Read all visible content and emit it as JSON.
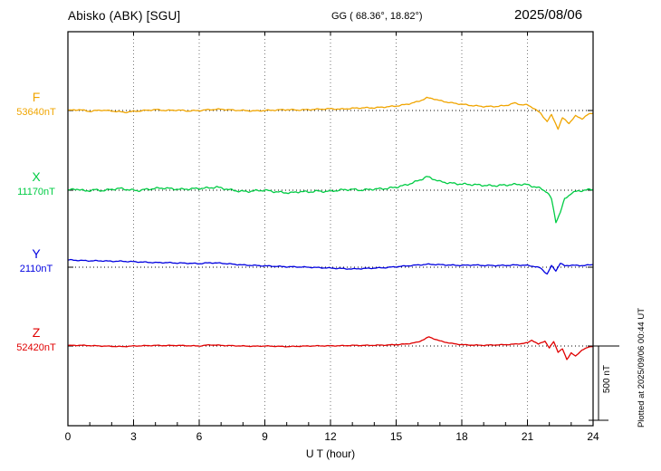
{
  "header": {
    "station": "Abisko (ABK)  [SGU]",
    "coords": "GG ( 68.36°,  18.82°)",
    "date": "2025/08/06"
  },
  "axis": {
    "xlabel": "U T (hour)",
    "tick_labels": [
      "0",
      "3",
      "6",
      "9",
      "12",
      "15",
      "18",
      "21",
      "24"
    ]
  },
  "trace_labels": [
    {
      "letter": "F",
      "value": "53640nT"
    },
    {
      "letter": "X",
      "value": "11170nT"
    },
    {
      "letter": "Y",
      "value": "2110nT"
    },
    {
      "letter": "Z",
      "value": "52420nT"
    }
  ],
  "scale_bar": {
    "label": "500 nT"
  },
  "plotted_note": "Plotted at 2025/09/06 00:44 UT",
  "colors": {
    "grid": "#777777",
    "axis": "#000000"
  },
  "chart_data": {
    "type": "line",
    "title": "Abisko (ABK) [SGU] magnetogram",
    "date": "2025/08/06",
    "xlabel": "U T (hour)",
    "xlim": [
      0,
      24
    ],
    "x_ticks": [
      0,
      3,
      6,
      9,
      12,
      15,
      18,
      21,
      24
    ],
    "scale_bar_nT": 500,
    "series": [
      {
        "name": "F",
        "baseline_nT": 53640,
        "color": "#f0a500",
        "wiggle_nT": 5,
        "points": [
          [
            0,
            0
          ],
          [
            0.5,
            6
          ],
          [
            1,
            -6
          ],
          [
            1.5,
            3
          ],
          [
            2,
            -3
          ],
          [
            2.6,
            -12
          ],
          [
            3,
            -6
          ],
          [
            3.5,
            0
          ],
          [
            4,
            6
          ],
          [
            4.5,
            0
          ],
          [
            5,
            3
          ],
          [
            5.5,
            -3
          ],
          [
            6,
            0
          ],
          [
            6.5,
            6
          ],
          [
            7,
            9
          ],
          [
            7.5,
            3
          ],
          [
            8,
            0
          ],
          [
            8.5,
            -3
          ],
          [
            9,
            0
          ],
          [
            9.5,
            3
          ],
          [
            10,
            6
          ],
          [
            10.5,
            3
          ],
          [
            11,
            6
          ],
          [
            11.5,
            9
          ],
          [
            12,
            12
          ],
          [
            12.5,
            9
          ],
          [
            13,
            15
          ],
          [
            13.5,
            18
          ],
          [
            14,
            18
          ],
          [
            14.5,
            24
          ],
          [
            15,
            30
          ],
          [
            15.5,
            42
          ],
          [
            16,
            60
          ],
          [
            16.4,
            85
          ],
          [
            16.7,
            80
          ],
          [
            17,
            66
          ],
          [
            17.5,
            52
          ],
          [
            18,
            42
          ],
          [
            18.5,
            33
          ],
          [
            19,
            27
          ],
          [
            19.5,
            27
          ],
          [
            20,
            33
          ],
          [
            20.4,
            50
          ],
          [
            20.7,
            40
          ],
          [
            21,
            37
          ],
          [
            21.3,
            15
          ],
          [
            21.6,
            -20
          ],
          [
            21.9,
            -73
          ],
          [
            22.1,
            -30
          ],
          [
            22.4,
            -122
          ],
          [
            22.6,
            -50
          ],
          [
            22.9,
            -85
          ],
          [
            23.2,
            -37
          ],
          [
            23.5,
            -55
          ],
          [
            23.8,
            -25
          ],
          [
            24,
            -18
          ]
        ]
      },
      {
        "name": "X",
        "baseline_nT": 11170,
        "color": "#00cc44",
        "wiggle_nT": 8,
        "points": [
          [
            0,
            0
          ],
          [
            0.4,
            9
          ],
          [
            0.8,
            -6
          ],
          [
            1.2,
            3
          ],
          [
            1.6,
            -3
          ],
          [
            2,
            6
          ],
          [
            2.4,
            12
          ],
          [
            2.8,
            3
          ],
          [
            3.2,
            -3
          ],
          [
            3.6,
            6
          ],
          [
            4,
            12
          ],
          [
            4.4,
            15
          ],
          [
            4.8,
            9
          ],
          [
            5.2,
            6
          ],
          [
            5.6,
            9
          ],
          [
            6,
            12
          ],
          [
            6.4,
            15
          ],
          [
            6.8,
            21
          ],
          [
            7.1,
            12
          ],
          [
            7.4,
            3
          ],
          [
            7.8,
            -6
          ],
          [
            8.2,
            -9
          ],
          [
            8.6,
            -3
          ],
          [
            9,
            0
          ],
          [
            9.4,
            -9
          ],
          [
            9.8,
            -15
          ],
          [
            10.2,
            -18
          ],
          [
            10.6,
            -9
          ],
          [
            11,
            -12
          ],
          [
            11.4,
            -6
          ],
          [
            11.8,
            -9
          ],
          [
            12.2,
            -3
          ],
          [
            12.6,
            3
          ],
          [
            13,
            6
          ],
          [
            13.4,
            0
          ],
          [
            13.8,
            6
          ],
          [
            14.2,
            9
          ],
          [
            14.6,
            12
          ],
          [
            15,
            21
          ],
          [
            15.4,
            33
          ],
          [
            15.8,
            52
          ],
          [
            16.1,
            70
          ],
          [
            16.4,
            91
          ],
          [
            16.7,
            76
          ],
          [
            17,
            58
          ],
          [
            17.4,
            49
          ],
          [
            17.8,
            43
          ],
          [
            18.2,
            40
          ],
          [
            18.6,
            37
          ],
          [
            19,
            33
          ],
          [
            19.4,
            30
          ],
          [
            19.8,
            33
          ],
          [
            20.2,
            37
          ],
          [
            20.6,
            40
          ],
          [
            21,
            37
          ],
          [
            21.3,
            24
          ],
          [
            21.6,
            12
          ],
          [
            21.9,
            -12
          ],
          [
            22.1,
            -60
          ],
          [
            22.3,
            -213
          ],
          [
            22.5,
            -150
          ],
          [
            22.7,
            -60
          ],
          [
            23,
            -20
          ],
          [
            23.3,
            -6
          ],
          [
            23.6,
            0
          ],
          [
            24,
            6
          ]
        ]
      },
      {
        "name": "Y",
        "baseline_nT": 2110,
        "color": "#0000e0",
        "wiggle_nT": 4,
        "points": [
          [
            0,
            49
          ],
          [
            0.5,
            46
          ],
          [
            1,
            43
          ],
          [
            1.5,
            43
          ],
          [
            2,
            40
          ],
          [
            2.5,
            40
          ],
          [
            3,
            37
          ],
          [
            3.5,
            34
          ],
          [
            4,
            31
          ],
          [
            4.5,
            31
          ],
          [
            5,
            28
          ],
          [
            5.5,
            27
          ],
          [
            6,
            24
          ],
          [
            6.5,
            30
          ],
          [
            7,
            27
          ],
          [
            7.5,
            21
          ],
          [
            8,
            15
          ],
          [
            8.5,
            12
          ],
          [
            9,
            9
          ],
          [
            9.5,
            6
          ],
          [
            10,
            3
          ],
          [
            10.5,
            2
          ],
          [
            11,
            0
          ],
          [
            11.5,
            -3
          ],
          [
            12,
            -6
          ],
          [
            12.5,
            -9
          ],
          [
            13,
            -12
          ],
          [
            13.5,
            -9
          ],
          [
            14,
            -6
          ],
          [
            14.5,
            -3
          ],
          [
            15,
            3
          ],
          [
            15.5,
            9
          ],
          [
            16,
            15
          ],
          [
            16.5,
            20
          ],
          [
            17,
            17
          ],
          [
            17.5,
            14
          ],
          [
            18,
            12
          ],
          [
            18.5,
            15
          ],
          [
            19,
            12
          ],
          [
            19.5,
            11
          ],
          [
            20,
            12
          ],
          [
            20.5,
            15
          ],
          [
            21,
            12
          ],
          [
            21.3,
            6
          ],
          [
            21.6,
            -6
          ],
          [
            21.9,
            -46
          ],
          [
            22.1,
            9
          ],
          [
            22.3,
            -24
          ],
          [
            22.5,
            27
          ],
          [
            22.7,
            9
          ],
          [
            23,
            14
          ],
          [
            23.3,
            11
          ],
          [
            23.6,
            12
          ],
          [
            24,
            17
          ]
        ]
      },
      {
        "name": "Z",
        "baseline_nT": 52420,
        "color": "#e00000",
        "wiggle_nT": 3,
        "points": [
          [
            0,
            3
          ],
          [
            0.5,
            5
          ],
          [
            1,
            3
          ],
          [
            1.5,
            0
          ],
          [
            2,
            -2
          ],
          [
            2.5,
            -4
          ],
          [
            3,
            0
          ],
          [
            3.5,
            2
          ],
          [
            4,
            4
          ],
          [
            4.5,
            3
          ],
          [
            5,
            4
          ],
          [
            5.5,
            2
          ],
          [
            6,
            0
          ],
          [
            6.5,
            8
          ],
          [
            7,
            4
          ],
          [
            7.5,
            2
          ],
          [
            8,
            0
          ],
          [
            8.5,
            -2
          ],
          [
            9,
            0
          ],
          [
            9.5,
            -2
          ],
          [
            10,
            -4
          ],
          [
            10.5,
            -2
          ],
          [
            11,
            0
          ],
          [
            11.5,
            1
          ],
          [
            12,
            1
          ],
          [
            12.5,
            2
          ],
          [
            13,
            4
          ],
          [
            13.5,
            4
          ],
          [
            14,
            5
          ],
          [
            14.5,
            6
          ],
          [
            15,
            9
          ],
          [
            15.5,
            14
          ],
          [
            16,
            26
          ],
          [
            16.5,
            61
          ],
          [
            16.8,
            45
          ],
          [
            17,
            34
          ],
          [
            17.5,
            18
          ],
          [
            18,
            9
          ],
          [
            18.5,
            6
          ],
          [
            19,
            5
          ],
          [
            19.5,
            7
          ],
          [
            20,
            9
          ],
          [
            20.5,
            13
          ],
          [
            21,
            21
          ],
          [
            21.2,
            40
          ],
          [
            21.5,
            12
          ],
          [
            21.8,
            34
          ],
          [
            22,
            -14
          ],
          [
            22.2,
            30
          ],
          [
            22.4,
            -40
          ],
          [
            22.6,
            -20
          ],
          [
            22.8,
            -91
          ],
          [
            23,
            -45
          ],
          [
            23.2,
            -70
          ],
          [
            23.5,
            -25
          ],
          [
            23.8,
            -8
          ],
          [
            24,
            -2
          ]
        ]
      }
    ]
  }
}
